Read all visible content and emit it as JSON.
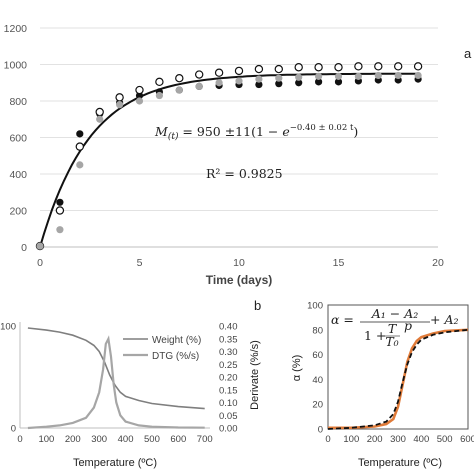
{
  "chart_data": [
    {
      "panel": "a",
      "type": "scatter",
      "xlabel": "Time (days)",
      "ylabel": "",
      "xlim": [
        0,
        20
      ],
      "ylim": [
        0,
        1200
      ],
      "x_ticks": [
        "0",
        "5",
        "10",
        "15",
        "20"
      ],
      "y_ticks": [
        "0",
        "200",
        "400",
        "600",
        "800",
        "1000",
        "1200"
      ],
      "grid": "horizontal",
      "series": [
        {
          "marker": "filled-black",
          "color": "#111111",
          "x": [
            0,
            1,
            2,
            3,
            4,
            5,
            6,
            7,
            8,
            9,
            10,
            11,
            12,
            13,
            14,
            15,
            16,
            17,
            18,
            19
          ],
          "y": [
            5,
            245,
            620,
            730,
            790,
            830,
            850,
            860,
            880,
            885,
            890,
            890,
            895,
            900,
            905,
            905,
            910,
            915,
            915,
            920
          ]
        },
        {
          "marker": "hollow",
          "color": "#111111",
          "x": [
            0,
            1,
            2,
            3,
            4,
            5,
            6,
            7,
            8,
            9,
            10,
            11,
            12,
            13,
            14,
            15,
            16,
            17,
            18,
            19
          ],
          "y": [
            5,
            200,
            550,
            740,
            820,
            860,
            905,
            925,
            945,
            955,
            965,
            975,
            975,
            985,
            985,
            985,
            990,
            990,
            990,
            990
          ]
        },
        {
          "marker": "filled-gray",
          "color": "#a6a6a6",
          "x": [
            0,
            1,
            2,
            3,
            4,
            5,
            6,
            7,
            8,
            9,
            10,
            11,
            12,
            13,
            14,
            15,
            16,
            17,
            18,
            19
          ],
          "y": [
            5,
            95,
            450,
            700,
            780,
            800,
            830,
            860,
            880,
            900,
            910,
            920,
            925,
            930,
            935,
            935,
            935,
            940,
            940,
            940
          ]
        }
      ],
      "fit": {
        "label": "M(t) = 950 ± 11(1 − e^(−0.40 ± 0.02 t))",
        "a": 950,
        "k": 0.4,
        "color": "#111111"
      },
      "equation": {
        "lhs": "M",
        "sub": "(t)",
        "mid": " = 950 ±11(1 − ",
        "exp_base": "e",
        "exp": "−0.40 ± 0.02 t",
        "tail": ")"
      },
      "r2": "R² = 0.9825",
      "panel_label": "a"
    },
    {
      "panel": "b",
      "type": "line",
      "xlabel": "Temperature (ºC)",
      "ylabel_right": "Derivate (%/s)",
      "xlim": [
        0,
        720
      ],
      "ylim_left": [
        0,
        100
      ],
      "ylim_right": [
        0,
        0.4
      ],
      "x_ticks": [
        "0",
        "100",
        "200",
        "300",
        "400",
        "500",
        "600",
        "700"
      ],
      "y_ticks_left": [
        "0",
        "100"
      ],
      "y_ticks_right": [
        "0.00",
        "0.05",
        "0.10",
        "0.15",
        "0.20",
        "0.25",
        "0.30",
        "0.35",
        "0.40"
      ],
      "series": [
        {
          "name": "Weight (%)",
          "axis": "left",
          "color": "#7f7f7f",
          "x": [
            30,
            100,
            150,
            200,
            250,
            280,
            300,
            320,
            340,
            360,
            380,
            400,
            450,
            500,
            600,
            700
          ],
          "y": [
            98,
            96,
            94,
            91,
            86,
            81,
            75,
            65,
            52,
            42,
            35,
            31,
            27,
            24,
            21,
            19
          ]
        },
        {
          "name": "DTG (%/s)",
          "axis": "right",
          "color": "#a6a6a6",
          "x": [
            30,
            100,
            150,
            200,
            250,
            280,
            300,
            315,
            325,
            335,
            345,
            355,
            365,
            380,
            400,
            450,
            500,
            600,
            700
          ],
          "y": [
            0.0,
            0.005,
            0.01,
            0.02,
            0.04,
            0.08,
            0.14,
            0.23,
            0.33,
            0.35,
            0.28,
            0.17,
            0.1,
            0.05,
            0.025,
            0.01,
            0.005,
            0.002,
            0.001
          ]
        }
      ],
      "panel_label": "b"
    },
    {
      "panel": "c",
      "type": "line",
      "xlabel": "Temperature (ºC)",
      "ylabel": "α (%)",
      "xlim": [
        0,
        600
      ],
      "ylim": [
        0,
        100
      ],
      "x_ticks": [
        "0",
        "100",
        "200",
        "300",
        "400",
        "500",
        "600"
      ],
      "y_ticks": [
        "0",
        "20",
        "40",
        "60",
        "80",
        "100"
      ],
      "equation_lhs": "α = ",
      "equation_num": "A₁ − A₂",
      "equation_den_1": "1 + ",
      "equation_den_frac_num": "T",
      "equation_den_frac_den": "T₀",
      "equation_den_exp": "p",
      "equation_tail": " + A₂",
      "series": [
        {
          "style": "dashed",
          "color": "#111111",
          "x": [
            0,
            100,
            200,
            250,
            280,
            300,
            320,
            340,
            360,
            380,
            400,
            450,
            500,
            600
          ],
          "y": [
            0,
            1,
            3,
            6,
            12,
            22,
            38,
            52,
            62,
            68,
            72,
            76,
            78,
            80
          ]
        },
        {
          "style": "solid",
          "color": "#e07b39",
          "x": [
            0,
            100,
            200,
            250,
            280,
            300,
            320,
            340,
            360,
            380,
            400,
            450,
            500,
            600
          ],
          "y": [
            1,
            1,
            2,
            4,
            8,
            18,
            36,
            54,
            65,
            71,
            74,
            77,
            79,
            80
          ]
        }
      ]
    }
  ]
}
